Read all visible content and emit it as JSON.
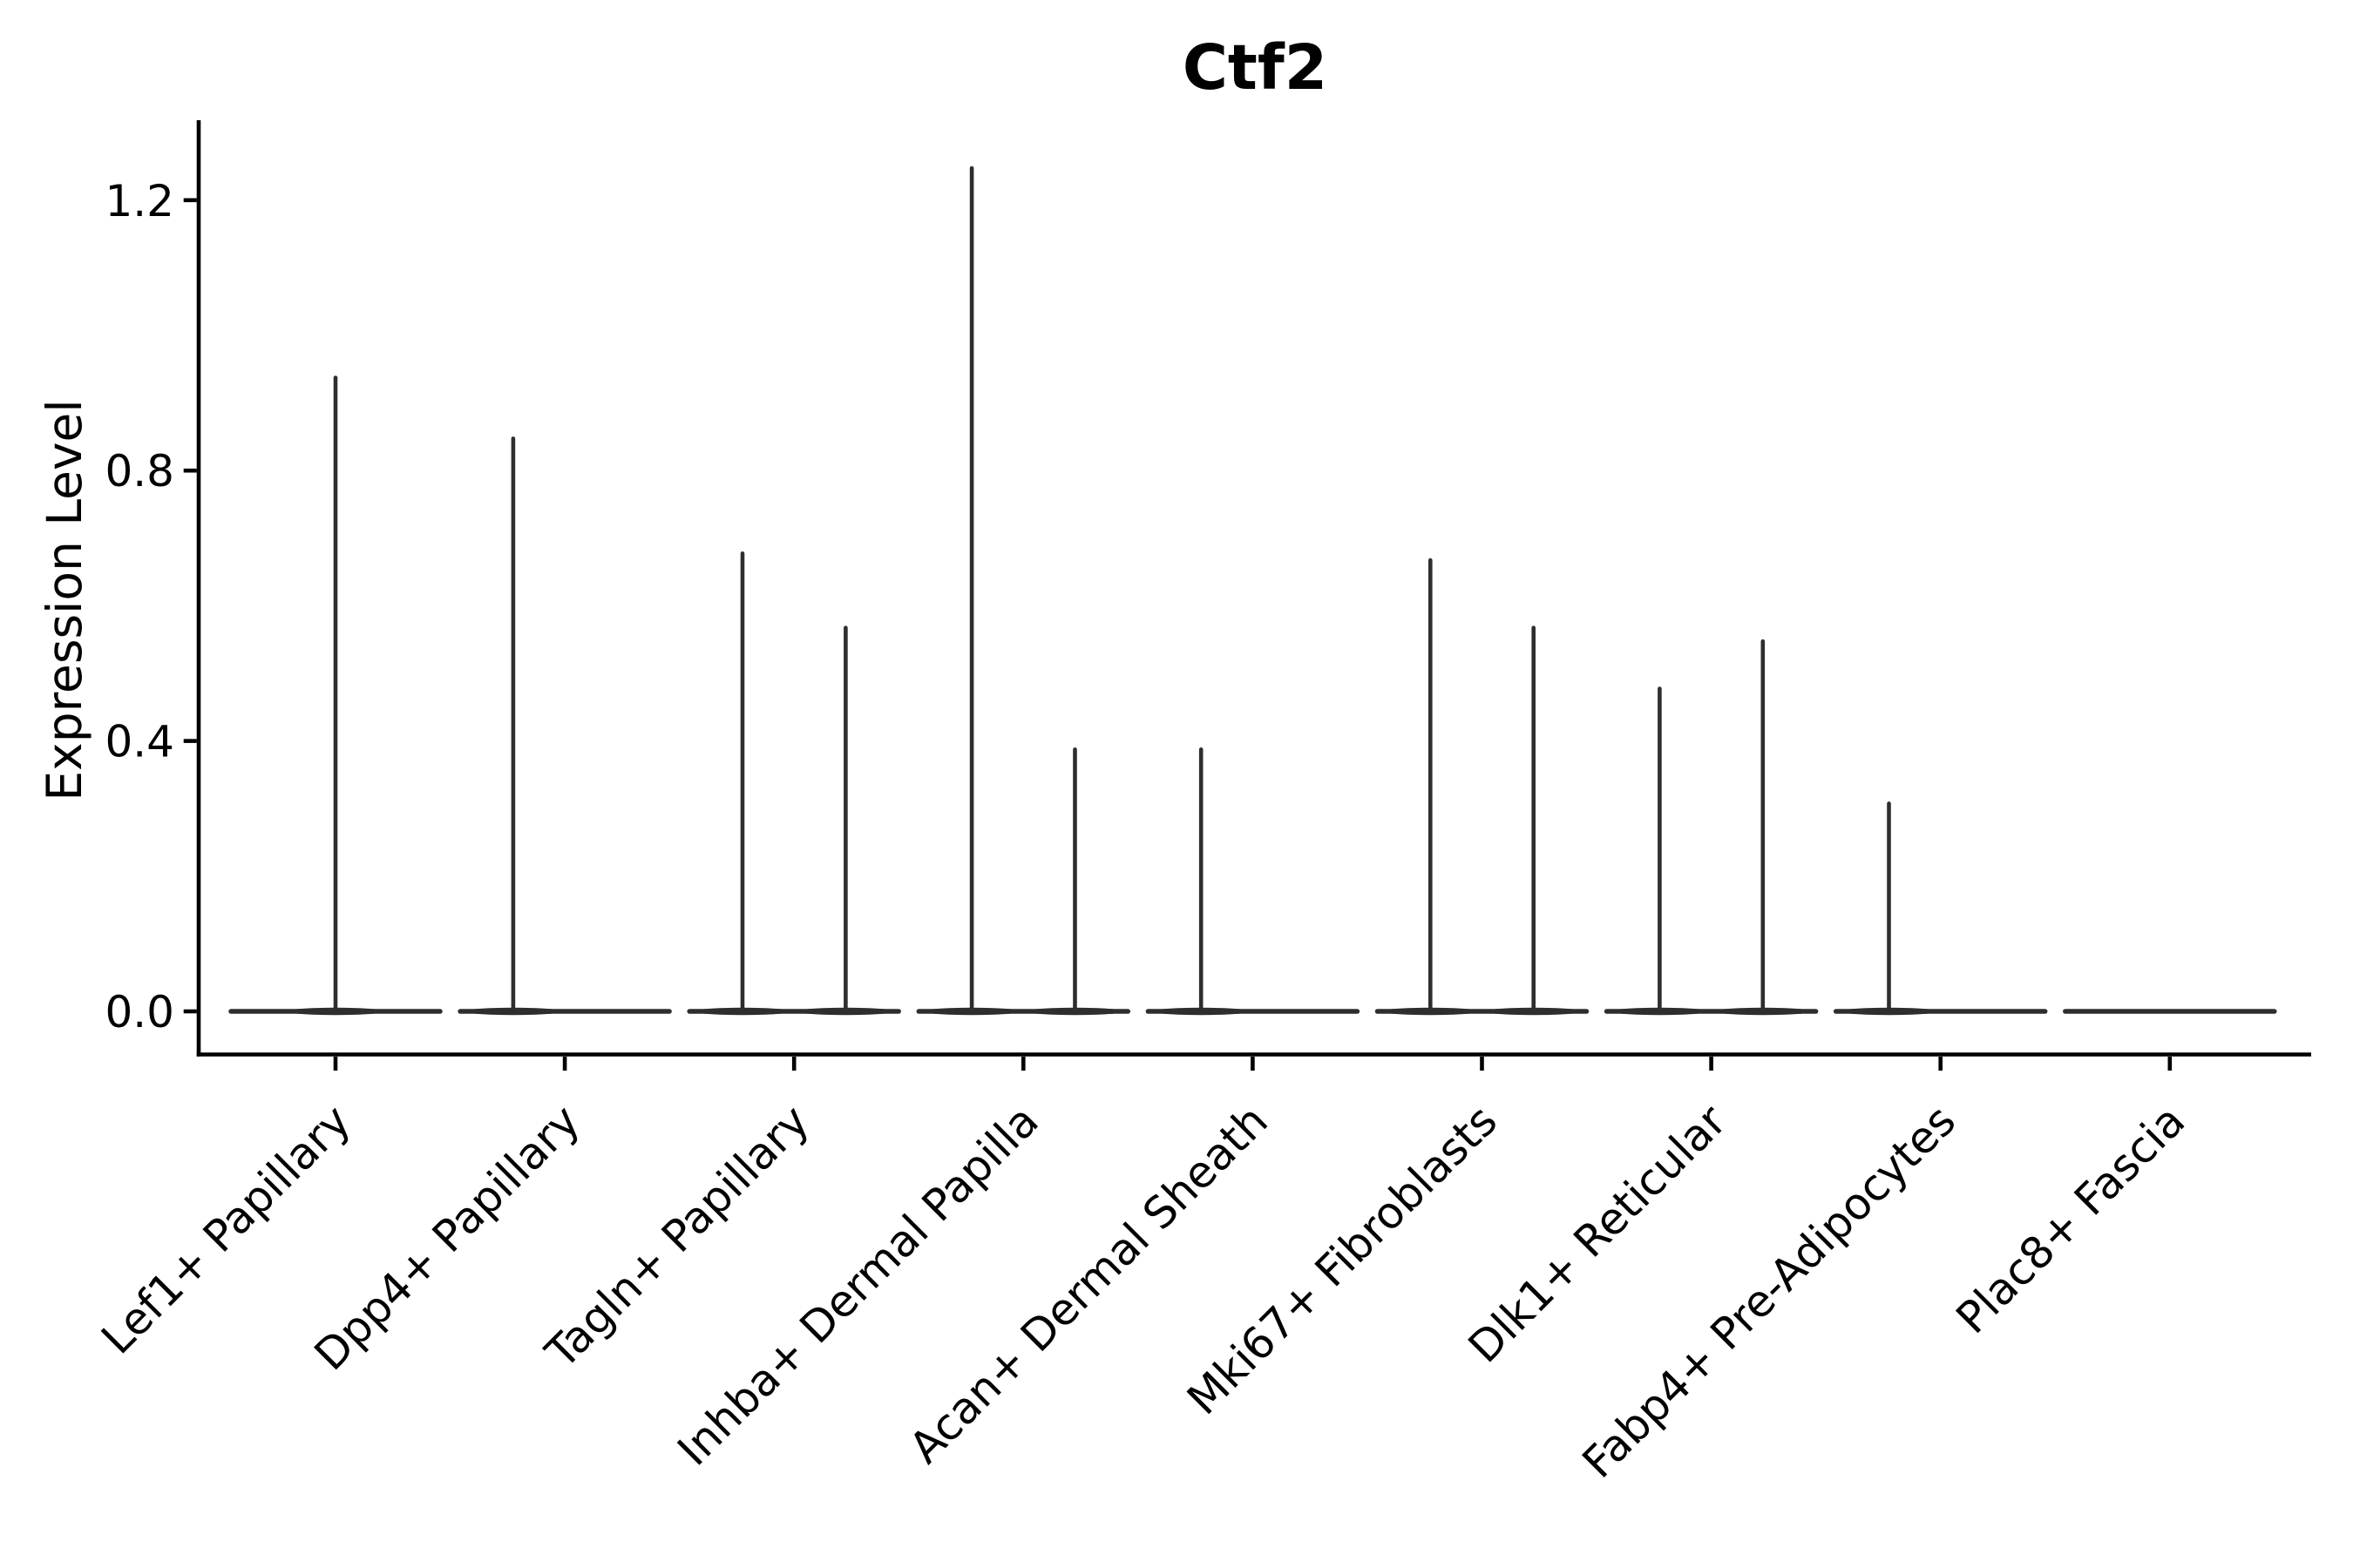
{
  "figure": {
    "title": "Ctf2",
    "y_axis_label": "Expression Level"
  },
  "chart_data": {
    "type": "violin",
    "title": "Ctf2",
    "xlabel": "",
    "ylabel": "Expression Level",
    "ylim": [
      0,
      1.3
    ],
    "yticks": [
      0.0,
      0.4,
      0.8,
      1.2
    ],
    "ytick_labels": [
      "0.0",
      "0.4",
      "0.8",
      "1.2"
    ],
    "grid": false,
    "legend": "none",
    "x_tick_rotation": 45,
    "categories": [
      "Lef1+ Papillary",
      "Dpp4+ Papillary",
      "Tagln+ Papillary",
      "Inhba+ Dermal Papilla",
      "Acan+ Dermal Sheath",
      "Mki67+ Fibroblasts",
      "Dlk1+ Reticular",
      "Fabp4+ Pre-Adipocytes",
      "Plac8+ Fascia"
    ],
    "violins": [
      {
        "category": "Lef1+ Papillary",
        "baseline_value": 0.0,
        "spikes": [
          {
            "offset": 0.0,
            "max": 0.94
          }
        ]
      },
      {
        "category": "Dpp4+ Papillary",
        "baseline_value": 0.0,
        "spikes": [
          {
            "offset": -0.225,
            "max": 0.85
          }
        ]
      },
      {
        "category": "Tagln+ Papillary",
        "baseline_value": 0.0,
        "spikes": [
          {
            "offset": -0.225,
            "max": 0.68
          },
          {
            "offset": 0.225,
            "max": 0.57
          }
        ]
      },
      {
        "category": "Inhba+ Dermal Papilla",
        "baseline_value": 0.0,
        "spikes": [
          {
            "offset": -0.225,
            "max": 1.25
          },
          {
            "offset": 0.225,
            "max": 0.39
          }
        ]
      },
      {
        "category": "Acan+ Dermal Sheath",
        "baseline_value": 0.0,
        "spikes": [
          {
            "offset": -0.225,
            "max": 0.39
          }
        ]
      },
      {
        "category": "Mki67+ Fibroblasts",
        "baseline_value": 0.0,
        "spikes": [
          {
            "offset": -0.225,
            "max": 0.67
          },
          {
            "offset": 0.225,
            "max": 0.57
          }
        ]
      },
      {
        "category": "Dlk1+ Reticular",
        "baseline_value": 0.0,
        "spikes": [
          {
            "offset": -0.225,
            "max": 0.48
          },
          {
            "offset": 0.225,
            "max": 0.55
          }
        ]
      },
      {
        "category": "Fabp4+ Pre-Adipocytes",
        "baseline_value": 0.0,
        "spikes": [
          {
            "offset": -0.225,
            "max": 0.31
          }
        ]
      },
      {
        "category": "Plac8+ Fascia",
        "baseline_value": 0.0,
        "spikes": []
      }
    ],
    "colors": {
      "violin": "#2e2e2e",
      "axis": "#000000",
      "text": "#000000",
      "background": "#ffffff"
    }
  }
}
